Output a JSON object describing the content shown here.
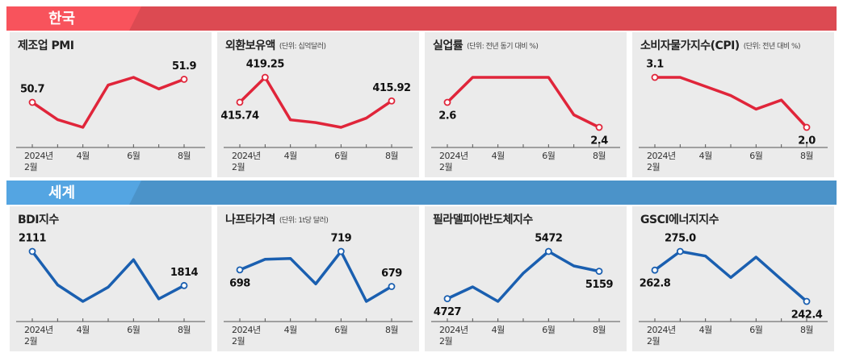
{
  "sections": [
    {
      "title": "한국",
      "color": "#dc4a52"
    },
    {
      "title": "세계",
      "color": "#4b93c9"
    }
  ],
  "chart_data": [
    {
      "type": "line",
      "title": "제조업 PMI",
      "categories": [
        "2024년 2월",
        null,
        "4월",
        null,
        "6월",
        null,
        "8월"
      ],
      "color": "#e0253a",
      "values": [
        50.7,
        49.8,
        49.4,
        51.6,
        52.0,
        51.4,
        51.9
      ],
      "value_labels": [
        "50.7",
        null,
        null,
        null,
        null,
        null,
        "51.9"
      ]
    },
    {
      "type": "line",
      "title": "외환보유액",
      "subtitle": "(단위: 십억달러)",
      "categories": [
        "2024년 2월",
        null,
        "4월",
        null,
        "6월",
        null,
        "8월"
      ],
      "color": "#e0253a",
      "values": [
        415.74,
        419.25,
        413.26,
        412.87,
        412.2,
        413.5,
        415.92
      ],
      "value_labels": [
        "415.74",
        "419.25",
        null,
        null,
        null,
        null,
        "415.92"
      ]
    },
    {
      "type": "line",
      "title": "실업률",
      "subtitle": "(단위: 전년 동기 대비 %)",
      "categories": [
        "2024년 2월",
        null,
        "4월",
        null,
        "6월",
        null,
        "8월"
      ],
      "color": "#e0253a",
      "values": [
        2.6,
        2.8,
        2.8,
        2.8,
        2.8,
        2.5,
        2.4
      ],
      "value_labels": [
        "2.6",
        null,
        null,
        null,
        null,
        null,
        "2.4"
      ]
    },
    {
      "type": "line",
      "title": "소비자물가지수(CPI)",
      "subtitle": "(단위: 전년 대비 %)",
      "categories": [
        "2024년 2월",
        null,
        "4월",
        null,
        "6월",
        null,
        "8월"
      ],
      "color": "#e0253a",
      "values": [
        3.1,
        3.1,
        2.9,
        2.7,
        2.4,
        2.6,
        2.0
      ],
      "value_labels": [
        "3.1",
        null,
        null,
        null,
        null,
        null,
        "2.0"
      ]
    },
    {
      "type": "line",
      "title": "BDI지수",
      "categories": [
        "2024년 2월",
        null,
        "4월",
        null,
        "6월",
        null,
        "8월"
      ],
      "color": "#1a5fb0",
      "values": [
        2111,
        1820,
        1676,
        1800,
        2039,
        1698,
        1814
      ],
      "value_labels": [
        "2111",
        null,
        null,
        null,
        null,
        null,
        "1814"
      ]
    },
    {
      "type": "line",
      "title": "나프타가격",
      "subtitle": "(단위: 1t당 달러)",
      "categories": [
        "2024년 2월",
        null,
        "4월",
        null,
        "6월",
        null,
        "8월"
      ],
      "color": "#1a5fb0",
      "values": [
        698,
        710,
        711,
        682,
        719,
        662,
        679
      ],
      "value_labels": [
        "698",
        null,
        null,
        null,
        "719",
        null,
        "679"
      ]
    },
    {
      "type": "line",
      "title": "필라델피아반도체지수",
      "categories": [
        "2024년 2월",
        null,
        "4월",
        null,
        "6월",
        null,
        "8월"
      ],
      "color": "#1a5fb0",
      "values": [
        4727,
        4913,
        4684,
        5128,
        5472,
        5243,
        5159
      ],
      "value_labels": [
        "4727",
        null,
        null,
        null,
        "5472",
        null,
        "5159"
      ]
    },
    {
      "type": "line",
      "title": "GSCI에너지지수",
      "categories": [
        "2024년 2월",
        null,
        "4월",
        null,
        "6월",
        null,
        "8월"
      ],
      "color": "#1a5fb0",
      "values": [
        262.8,
        275.0,
        272.0,
        258.0,
        271.3,
        256.7,
        242.4
      ],
      "value_labels": [
        "262.8",
        "275.0",
        null,
        null,
        null,
        null,
        "242.4"
      ]
    }
  ]
}
